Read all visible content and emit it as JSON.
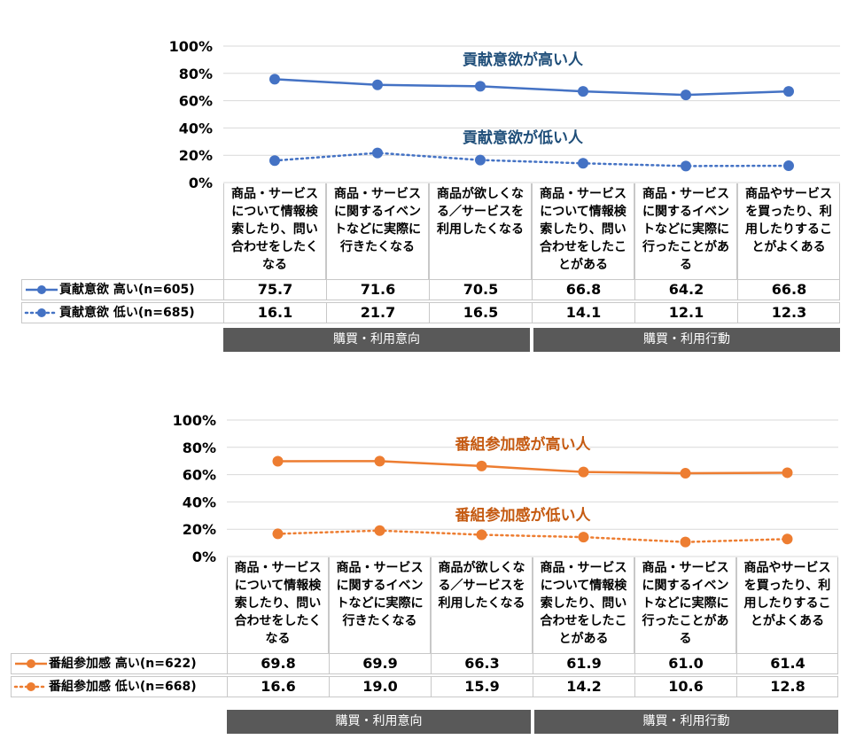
{
  "categories": [
    "商品・サービスについて情報検索したり、問い合わせをしたくなる",
    "商品・サービスに関するイベントなどに実際に行きたくなる",
    "商品が欲しくなる／サービスを利用したくなる",
    "商品・サービスについて情報検索したり、問い合わせをしたことがある",
    "商品・サービスに関するイベントなどに実際に行ったことがある",
    "商品やサービスを買ったり、利用したりすることがよくある"
  ],
  "groups": [
    "購買・利用意向",
    "購買・利用行動"
  ],
  "colors": {
    "blue": "#4472C4",
    "orange": "#ED7D31",
    "grid": "#d9d9d9",
    "group_bg": "#595959"
  },
  "chart_data": [
    {
      "type": "line",
      "ylim": [
        0,
        100
      ],
      "yticks": [
        "0%",
        "20%",
        "40%",
        "60%",
        "80%",
        "100%"
      ],
      "grid": true,
      "series": [
        {
          "name": "貢献意欲 高い(n=605)",
          "values": [
            75.7,
            71.6,
            70.5,
            66.8,
            64.2,
            66.8
          ],
          "display": [
            "75.7",
            "71.6",
            "70.5",
            "66.8",
            "64.2",
            "66.8"
          ],
          "style": "solid",
          "annotation": "貢献意欲が高い人"
        },
        {
          "name": "貢献意欲 低い(n=685)",
          "values": [
            16.1,
            21.7,
            16.5,
            14.1,
            12.1,
            12.3
          ],
          "display": [
            "16.1",
            "21.7",
            "16.5",
            "14.1",
            "12.1",
            "12.3"
          ],
          "style": "dotted",
          "annotation": "貢献意欲が低い人"
        }
      ]
    },
    {
      "type": "line",
      "ylim": [
        0,
        100
      ],
      "yticks": [
        "0%",
        "20%",
        "40%",
        "60%",
        "80%",
        "100%"
      ],
      "grid": true,
      "series": [
        {
          "name": "番組参加感 高い(n=622)",
          "values": [
            69.8,
            69.9,
            66.3,
            61.9,
            61.0,
            61.4
          ],
          "display": [
            "69.8",
            "69.9",
            "66.3",
            "61.9",
            "61.0",
            "61.4"
          ],
          "style": "solid",
          "annotation": "番組参加感が高い人"
        },
        {
          "name": "番組参加感 低い(n=668)",
          "values": [
            16.6,
            19.0,
            15.9,
            14.2,
            10.6,
            12.8
          ],
          "display": [
            "16.6",
            "19.0",
            "15.9",
            "14.2",
            "10.6",
            "12.8"
          ],
          "style": "dotted",
          "annotation": "番組参加感が低い人"
        }
      ]
    }
  ]
}
